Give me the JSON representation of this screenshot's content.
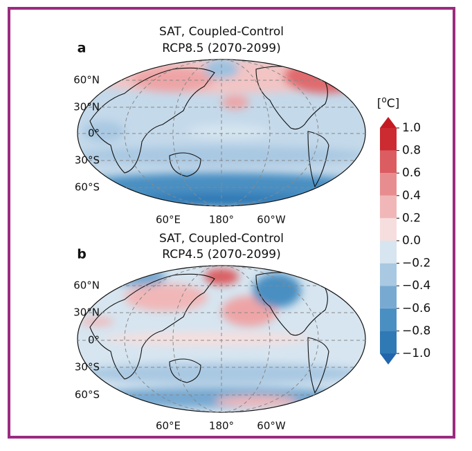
{
  "panels": [
    {
      "label": "a",
      "title": [
        "SAT, Coupled-Control",
        "RCP8.5 (2070-2099)"
      ],
      "lat_labels": [
        "60°N",
        "30°N",
        "0°",
        "30°S",
        "60°S"
      ],
      "lon_labels": [
        "60°E",
        "180°",
        "60°W"
      ]
    },
    {
      "label": "b",
      "title": [
        "SAT, Coupled-Control",
        "RCP4.5 (2070-2099)"
      ],
      "lat_labels": [
        "60°N",
        "30°N",
        "0°",
        "30°S",
        "60°S"
      ],
      "lon_labels": [
        "60°E",
        "180°",
        "60°W"
      ]
    }
  ],
  "colorbar": {
    "unit": {
      "open": "[",
      "sup": "o",
      "close": "C]"
    },
    "ticks": [
      {
        "value": 1.0,
        "label": "1.0"
      },
      0.8,
      0.6,
      0.4,
      0.2,
      {
        "value": 0.0,
        "label": "0.0"
      },
      {
        "value": -0.2,
        "label": "−0.2"
      },
      {
        "value": -0.4,
        "label": "−0.4"
      },
      {
        "value": -0.6,
        "label": "−0.6"
      },
      {
        "value": -0.8,
        "label": "−0.8"
      },
      {
        "value": -1.0,
        "label": "−1.0"
      }
    ],
    "colors": [
      "#2f79b5",
      "#4a8fc2",
      "#77a9d1",
      "#a9c8e2",
      "#d6e5f0",
      "#f6dede",
      "#f1b7b8",
      "#e88d8f",
      "#db5d61",
      "#cc2b31"
    ],
    "under": "#2166ac",
    "over": "#c51a22"
  }
}
